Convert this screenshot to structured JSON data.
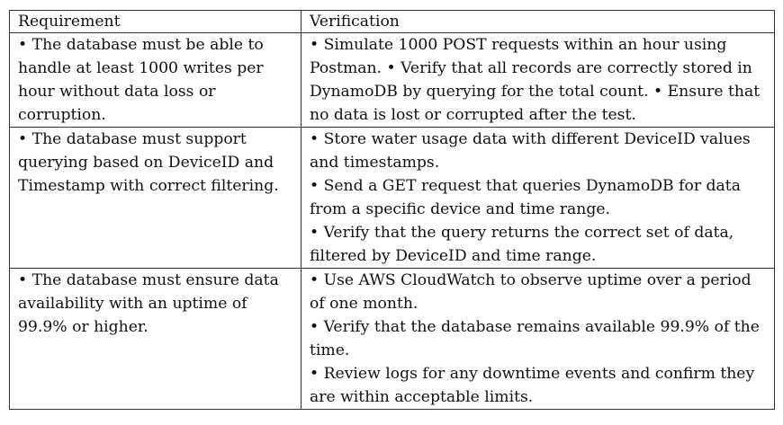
{
  "table": {
    "headers": {
      "requirement": "Requirement",
      "verification": "Verification"
    },
    "rows": [
      {
        "requirement": "• The database must be able to handle at least 1000 writes per hour without data loss or corruption.",
        "verification_inline": true,
        "verification": [
          "• Simulate 1000 POST requests within an hour using Postman.",
          "• Verify that all records are correctly stored in DynamoDB by querying for the total count.",
          "• Ensure that no data is lost or corrupted after the test."
        ]
      },
      {
        "requirement": "• The database must support querying based on DeviceID and Timestamp with correct filtering.",
        "verification_inline": false,
        "verification": [
          "• Store water usage data with different DeviceID values and timestamps.",
          "• Send a GET request that queries DynamoDB for data from a specific device and time range.",
          "• Verify that the query returns the correct set of data, filtered by DeviceID and time range."
        ]
      },
      {
        "requirement": "• The database must ensure data availability with an uptime of 99.9% or higher.",
        "verification_inline": false,
        "verification": [
          "• Use AWS CloudWatch to observe uptime over a period of one month.",
          "• Verify that the database remains available 99.9% of the time.",
          "• Review logs for any downtime events and confirm they are within acceptable limits."
        ]
      }
    ]
  }
}
